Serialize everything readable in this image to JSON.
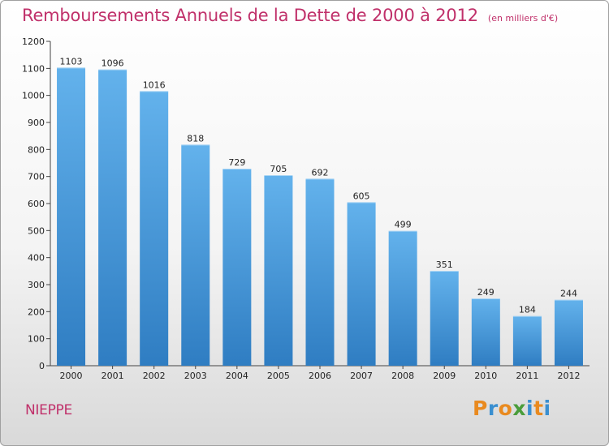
{
  "title": "Remboursements Annuels de la Dette de 2000 à 2012",
  "subtitle": "(en milliers d'€)",
  "location": "NIEPPE",
  "brand": {
    "text": "Proxiti",
    "letters": [
      {
        "ch": "P",
        "color": "#e98a1f"
      },
      {
        "ch": "r",
        "color": "#3a8fd0"
      },
      {
        "ch": "o",
        "color": "#e98a1f"
      },
      {
        "ch": "x",
        "color": "#4a9d3b"
      },
      {
        "ch": "i",
        "color": "#3a8fd0"
      },
      {
        "ch": "t",
        "color": "#e98a1f"
      },
      {
        "ch": "i",
        "color": "#3a8fd0"
      }
    ]
  },
  "colors": {
    "title": "#c0306a",
    "bar_top": "#63b2ec",
    "bar_bottom": "#2f7dc2"
  },
  "chart_data": {
    "type": "bar",
    "title": "Remboursements Annuels de la Dette de 2000 à 2012",
    "subtitle": "(en milliers d'€)",
    "categories": [
      "2000",
      "2001",
      "2002",
      "2003",
      "2004",
      "2005",
      "2006",
      "2007",
      "2008",
      "2009",
      "2010",
      "2011",
      "2012"
    ],
    "values": [
      1103,
      1096,
      1016,
      818,
      729,
      705,
      692,
      605,
      499,
      351,
      249,
      184,
      244
    ],
    "ylim": [
      0,
      1200
    ],
    "yticks": [
      0,
      100,
      200,
      300,
      400,
      500,
      600,
      700,
      800,
      900,
      1000,
      1100,
      1200
    ],
    "grid": false,
    "data_labels": true
  }
}
